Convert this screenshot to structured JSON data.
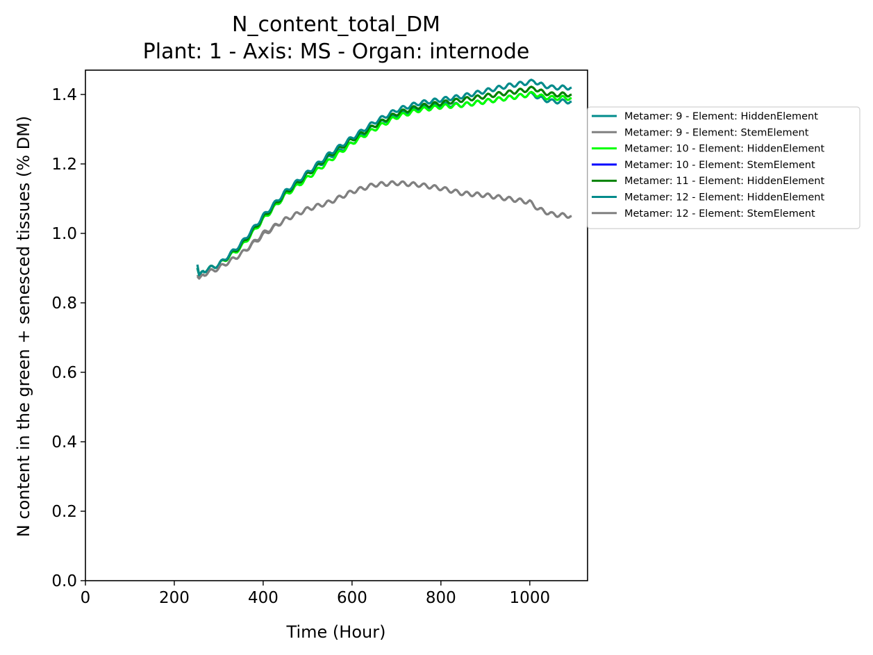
{
  "chart_data": {
    "type": "line",
    "title": "N_content_total_DM",
    "subtitle": "Plant: 1 - Axis: MS - Organ: internode",
    "xlabel": "Time (Hour)",
    "ylabel": "N content in the green + senesced tissues (% DM)",
    "xlim": [
      0,
      1130
    ],
    "ylim": [
      0,
      1.47
    ],
    "xticks": [
      0,
      200,
      400,
      600,
      800,
      1000
    ],
    "xtick_labels": [
      "0",
      "200",
      "400",
      "600",
      "800",
      "1000"
    ],
    "yticks": [
      0,
      0.2,
      0.4,
      0.6,
      0.8,
      1.0,
      1.2,
      1.4
    ],
    "ytick_labels": [
      "0.0",
      "0.2",
      "0.4",
      "0.6",
      "0.8",
      "1.0",
      "1.2",
      "1.4"
    ],
    "grid": false,
    "legend_position": "right, outside plot",
    "series": [
      {
        "name": "Metamer: 9 - Element: HiddenElement",
        "color": "#008B8B",
        "x": [
          252,
          256,
          262,
          300,
          350,
          400,
          450,
          500,
          550,
          600,
          650,
          700,
          750,
          800,
          850,
          900,
          950,
          1000,
          1010,
          1020,
          1050,
          1094
        ],
        "y": [
          0.91,
          0.88,
          0.89,
          0.91,
          0.96,
          1.04,
          1.11,
          1.17,
          1.22,
          1.26,
          1.31,
          1.34,
          1.36,
          1.37,
          1.37,
          1.38,
          1.39,
          1.4,
          1.4,
          1.39,
          1.38,
          1.38
        ]
      },
      {
        "name": "Metamer: 9 - Element: StemElement",
        "color": "#808080",
        "x": [
          252,
          256,
          262,
          300,
          350,
          400,
          450,
          500,
          550,
          600,
          650,
          700,
          750,
          800,
          850,
          900,
          950,
          1000,
          1010,
          1020,
          1050,
          1094
        ],
        "y": [
          0.88,
          0.87,
          0.88,
          0.9,
          0.94,
          1.0,
          1.04,
          1.07,
          1.09,
          1.12,
          1.14,
          1.145,
          1.14,
          1.13,
          1.115,
          1.11,
          1.1,
          1.09,
          1.08,
          1.07,
          1.055,
          1.05
        ]
      },
      {
        "name": "Metamer: 10 - Element: HiddenElement",
        "color": "#00FF00",
        "x": [
          252,
          256,
          262,
          300,
          350,
          400,
          450,
          500,
          550,
          600,
          650,
          700,
          750,
          800,
          850,
          900,
          950,
          1000,
          1010,
          1020,
          1050,
          1094
        ],
        "y": [
          0.9,
          0.88,
          0.89,
          0.91,
          0.96,
          1.04,
          1.11,
          1.16,
          1.21,
          1.26,
          1.3,
          1.335,
          1.355,
          1.365,
          1.37,
          1.38,
          1.39,
          1.4,
          1.405,
          1.395,
          1.39,
          1.39
        ]
      },
      {
        "name": "Metamer: 10 - Element: StemElement",
        "color": "#0000FF",
        "x": [],
        "y": []
      },
      {
        "name": "Metamer: 11 - Element: HiddenElement",
        "color": "#008000",
        "x": [
          252,
          256,
          262,
          300,
          350,
          400,
          450,
          500,
          550,
          600,
          650,
          700,
          750,
          800,
          850,
          900,
          950,
          1000,
          1010,
          1020,
          1050,
          1094
        ],
        "y": [
          0.9,
          0.88,
          0.89,
          0.91,
          0.965,
          1.045,
          1.115,
          1.17,
          1.225,
          1.27,
          1.31,
          1.345,
          1.365,
          1.375,
          1.385,
          1.395,
          1.405,
          1.415,
          1.42,
          1.41,
          1.4,
          1.4
        ]
      },
      {
        "name": "Metamer: 12 - Element: HiddenElement",
        "color": "#008B8B",
        "x": [
          252,
          256,
          262,
          300,
          350,
          400,
          450,
          500,
          550,
          600,
          650,
          700,
          750,
          800,
          850,
          900,
          950,
          1000,
          1010,
          1020,
          1050,
          1094
        ],
        "y": [
          0.9,
          0.88,
          0.89,
          0.91,
          0.97,
          1.05,
          1.12,
          1.175,
          1.23,
          1.275,
          1.32,
          1.355,
          1.375,
          1.385,
          1.395,
          1.41,
          1.425,
          1.435,
          1.44,
          1.43,
          1.42,
          1.42
        ]
      },
      {
        "name": "Metamer: 12 - Element: StemElement",
        "color": "#808080",
        "x": [
          252,
          256,
          262,
          300,
          350,
          400,
          450,
          500,
          550,
          600,
          650,
          700,
          750,
          800,
          850,
          900,
          950,
          1000,
          1010,
          1020,
          1050,
          1094
        ],
        "y": [
          0.875,
          0.87,
          0.88,
          0.9,
          0.94,
          0.995,
          1.04,
          1.07,
          1.09,
          1.12,
          1.14,
          1.145,
          1.14,
          1.13,
          1.115,
          1.11,
          1.1,
          1.09,
          1.08,
          1.07,
          1.055,
          1.05
        ]
      }
    ]
  }
}
